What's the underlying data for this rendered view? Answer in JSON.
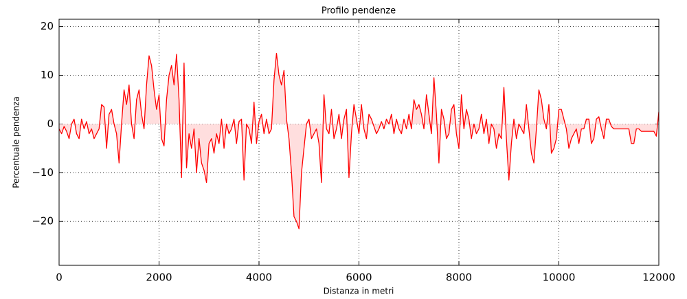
{
  "chart_data": {
    "type": "line",
    "title": "Profilo pendenze",
    "x_label": "Distanza in metri",
    "y_label": "Percentuale pendenza",
    "xlim": [
      0,
      12000
    ],
    "ylim": [
      -29,
      21.5
    ],
    "xticks": [
      0,
      2000,
      4000,
      6000,
      8000,
      10000,
      12000
    ],
    "yticks": [
      {
        "value": -20,
        "label": "−20"
      },
      {
        "value": -10,
        "label": "−10"
      },
      0,
      10,
      20
    ],
    "grid": true,
    "fill_to_zero": true,
    "fill_color": "#ffdede",
    "x": [
      0,
      50,
      100,
      150,
      200,
      250,
      300,
      350,
      400,
      450,
      500,
      550,
      600,
      650,
      700,
      750,
      800,
      850,
      900,
      950,
      1000,
      1050,
      1100,
      1150,
      1200,
      1250,
      1300,
      1350,
      1400,
      1450,
      1500,
      1550,
      1600,
      1650,
      1700,
      1750,
      1800,
      1850,
      1900,
      1950,
      2000,
      2050,
      2100,
      2150,
      2200,
      2250,
      2300,
      2350,
      2400,
      2450,
      2500,
      2550,
      2600,
      2650,
      2700,
      2750,
      2800,
      2850,
      2900,
      2950,
      3000,
      3050,
      3100,
      3150,
      3200,
      3250,
      3300,
      3350,
      3400,
      3450,
      3500,
      3550,
      3600,
      3650,
      3700,
      3750,
      3800,
      3850,
      3900,
      3950,
      4000,
      4050,
      4100,
      4150,
      4200,
      4250,
      4300,
      4350,
      4400,
      4450,
      4500,
      4550,
      4600,
      4650,
      4700,
      4750,
      4800,
      4850,
      4900,
      4950,
      5000,
      5050,
      5100,
      5150,
      5200,
      5250,
      5300,
      5350,
      5400,
      5450,
      5500,
      5550,
      5600,
      5650,
      5700,
      5750,
      5800,
      5850,
      5900,
      5950,
      6000,
      6050,
      6100,
      6150,
      6200,
      6250,
      6300,
      6350,
      6400,
      6450,
      6500,
      6550,
      6600,
      6650,
      6700,
      6750,
      6800,
      6850,
      6900,
      6950,
      7000,
      7050,
      7100,
      7150,
      7200,
      7250,
      7300,
      7350,
      7400,
      7450,
      7500,
      7550,
      7600,
      7650,
      7700,
      7750,
      7800,
      7850,
      7900,
      7950,
      8000,
      8050,
      8100,
      8150,
      8200,
      8250,
      8300,
      8350,
      8400,
      8450,
      8500,
      8550,
      8600,
      8650,
      8700,
      8750,
      8800,
      8850,
      8900,
      8950,
      9000,
      9050,
      9100,
      9150,
      9200,
      9250,
      9300,
      9350,
      9400,
      9450,
      9500,
      9550,
      9600,
      9650,
      9700,
      9750,
      9800,
      9850,
      9900,
      9950,
      10000,
      10050,
      10100,
      10150,
      10200,
      10250,
      10300,
      10350,
      10400,
      10450,
      10500,
      10550,
      10600,
      10650,
      10700,
      10750,
      10800,
      10850,
      10900,
      10950,
      11000,
      11050,
      11100,
      11150,
      11200,
      11250,
      11300,
      11350,
      11400,
      11450,
      11500,
      11550,
      11600,
      11650,
      11700,
      11750,
      11800,
      11850,
      11900,
      11950,
      12000
    ],
    "series": [
      {
        "color": "#ff0000",
        "values": [
          -1,
          -2,
          -0.5,
          -1.5,
          -3,
          0,
          1,
          -2,
          -3,
          1,
          -1,
          0.5,
          -2,
          -1,
          -3,
          -2,
          -1,
          4,
          3.5,
          -5,
          2,
          3,
          0,
          -2,
          -8,
          0,
          7,
          4,
          8,
          0,
          -3,
          5,
          7,
          2,
          -1,
          8,
          14,
          12,
          7,
          3,
          6,
          -3,
          -4.5,
          5,
          10,
          12,
          8,
          14.3,
          5,
          -11,
          12.5,
          -9,
          -2,
          -5,
          -1,
          -10,
          -3,
          -8,
          -9.5,
          -12,
          -4,
          -3,
          -6,
          -2,
          -4,
          1,
          -5,
          0,
          -2,
          -1,
          1,
          -4,
          0.5,
          1,
          -11.5,
          0,
          -1,
          -4,
          4.5,
          -4,
          0.5,
          2,
          -2,
          1,
          -2,
          -1,
          9,
          14.5,
          10,
          8,
          11,
          1,
          -3,
          -10,
          -19,
          -20,
          -21.5,
          -10,
          -5,
          0,
          1,
          -3,
          -2,
          -1,
          -4,
          -12,
          6,
          -1,
          -2,
          3,
          -3,
          -1,
          2,
          -3,
          1,
          3,
          -11,
          -2,
          4,
          1,
          -2,
          4,
          -1,
          -3,
          2,
          1,
          -0.5,
          -2,
          -1,
          0.5,
          -1,
          1,
          0,
          2,
          -2,
          1,
          -1,
          -2,
          1,
          -1,
          2,
          -1,
          5,
          3,
          4,
          2,
          -1,
          6,
          2,
          -2,
          9.5,
          2,
          -8,
          3,
          1,
          -3,
          -2,
          3,
          4,
          -2,
          -5,
          6,
          -1,
          3,
          1,
          -3,
          0,
          -2,
          -1,
          2,
          -2,
          1,
          -4,
          0,
          -1,
          -5,
          -2,
          -3,
          7.5,
          -3,
          -11.5,
          -4,
          1,
          -3,
          0,
          -1,
          -2,
          4,
          -1,
          -6,
          -8,
          -1,
          7,
          5,
          1,
          -1,
          4,
          -6,
          -5,
          -3,
          3,
          3,
          1,
          -1,
          -5,
          -3,
          -2,
          -1,
          -4,
          -1,
          -1,
          1,
          1,
          -4,
          -3,
          1,
          1.5,
          -1,
          -3,
          1,
          1,
          -0.5,
          -1,
          -1,
          -1,
          -1,
          -1,
          -1,
          -1,
          -4,
          -4,
          -1,
          -1,
          -1.5,
          -1.5,
          -1.5,
          -1.5,
          -1.5,
          -1.5,
          -2.5,
          2.5
        ]
      }
    ]
  }
}
